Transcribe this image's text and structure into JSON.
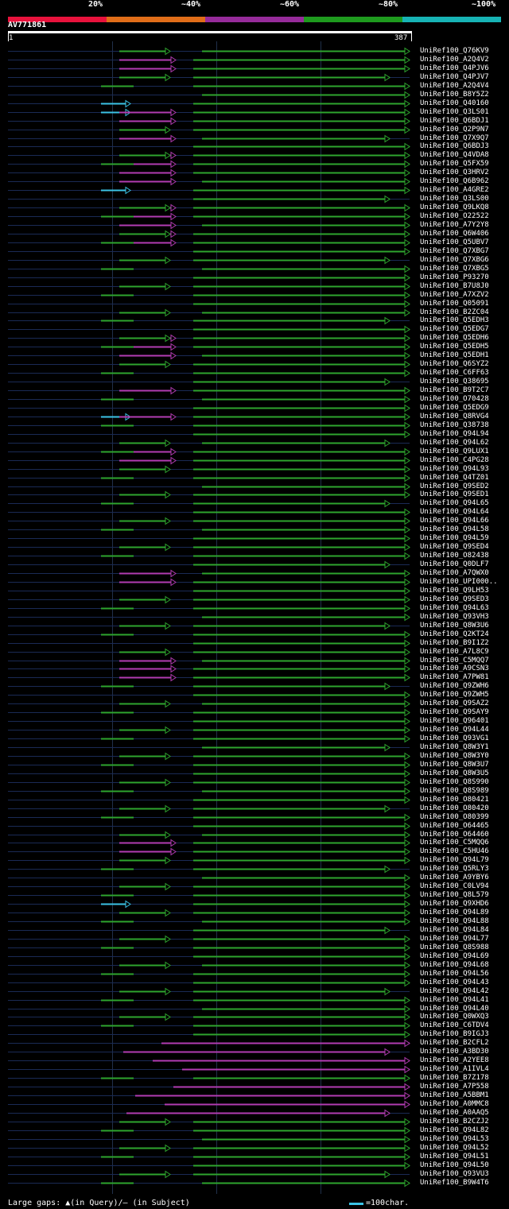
{
  "colors": {
    "bg": "#000000",
    "band_20": "#e8123c",
    "band_40": "#e06d19",
    "band_60": "#962b9a",
    "band_80": "#1e9a1e",
    "band_100": "#17b3b5",
    "green": "#2ea52e",
    "magenta": "#b23cb2",
    "cyan": "#3bc3e6",
    "faint": "#1a2a55"
  },
  "legend": {
    "labels": [
      "20%",
      "~40%",
      "~60%",
      "~80%",
      "~100%"
    ]
  },
  "query": {
    "name": "AV771861",
    "start": "1",
    "end": "387"
  },
  "hits": [
    {
      "label": "UniRef100_Q76KV9",
      "kind": "g"
    },
    {
      "label": "UniRef100_A2Q4V2",
      "kind": "m"
    },
    {
      "label": "UniRef100_Q4PJV6",
      "kind": "gm"
    },
    {
      "label": "UniRef100_Q4PJV7",
      "kind": "g"
    },
    {
      "label": "UniRef100_A2Q4V4",
      "kind": "g"
    },
    {
      "label": "UniRef100_B8Y5Z2",
      "kind": "g"
    },
    {
      "label": "UniRef100_Q40160",
      "kind": "c"
    },
    {
      "label": "UniRef100_Q3LS01",
      "kind": "cm"
    },
    {
      "label": "UniRef100_Q6BDJ1",
      "kind": "m"
    },
    {
      "label": "UniRef100_Q2P9N7",
      "kind": "g"
    },
    {
      "label": "UniRef100_Q7X9Q7",
      "kind": "m"
    },
    {
      "label": "UniRef100_Q6BDJ3",
      "kind": "g"
    },
    {
      "label": "UniRef100_Q4VDA8",
      "kind": "gm"
    },
    {
      "label": "UniRef100_Q5FX59",
      "kind": "gm"
    },
    {
      "label": "UniRef100_Q3HRV2",
      "kind": "gm"
    },
    {
      "label": "UniRef100_Q6B962",
      "kind": "m"
    },
    {
      "label": "UniRef100_A4GRE2",
      "kind": "c"
    },
    {
      "label": "UniRef100_Q3LS00",
      "kind": "g"
    },
    {
      "label": "UniRef100_Q9LKQ8",
      "kind": "gm"
    },
    {
      "label": "UniRef100_O22522",
      "kind": "gm"
    },
    {
      "label": "UniRef100_A7Y2Y8",
      "kind": "gm"
    },
    {
      "label": "UniRef100_Q6W406",
      "kind": "gm"
    },
    {
      "label": "UniRef100_Q5UBV7",
      "kind": "gm"
    },
    {
      "label": "UniRef100_Q7XBG7",
      "kind": "g"
    },
    {
      "label": "UniRef100_Q7XBG6",
      "kind": "g"
    },
    {
      "label": "UniRef100_Q7XBG5",
      "kind": "g"
    },
    {
      "label": "UniRef100_P93270",
      "kind": "g"
    },
    {
      "label": "UniRef100_B7U8J0",
      "kind": "g"
    },
    {
      "label": "UniRef100_A7XZV2",
      "kind": "g"
    },
    {
      "label": "UniRef100_Q05091",
      "kind": "g"
    },
    {
      "label": "UniRef100_B2ZC04",
      "kind": "g"
    },
    {
      "label": "UniRef100_Q5EDH3",
      "kind": "g"
    },
    {
      "label": "UniRef100_Q5EDG7",
      "kind": "g"
    },
    {
      "label": "UniRef100_Q5EDH6",
      "kind": "gm"
    },
    {
      "label": "UniRef100_Q5EDH5",
      "kind": "gm"
    },
    {
      "label": "UniRef100_Q5EDH1",
      "kind": "gm"
    },
    {
      "label": "UniRef100_Q6SYZ2",
      "kind": "g"
    },
    {
      "label": "UniRef100_C6FF63",
      "kind": "g"
    },
    {
      "label": "UniRef100_Q38695",
      "kind": "g"
    },
    {
      "label": "UniRef100_B9T2C7",
      "kind": "m"
    },
    {
      "label": "UniRef100_O70428",
      "kind": "g"
    },
    {
      "label": "UniRef100_Q5EDG9",
      "kind": "g"
    },
    {
      "label": "UniRef100_Q8RVG4",
      "kind": "cm"
    },
    {
      "label": "UniRef100_Q38738",
      "kind": "g"
    },
    {
      "label": "UniRef100_Q94L94",
      "kind": "g"
    },
    {
      "label": "UniRef100_Q94L62",
      "kind": "g"
    },
    {
      "label": "UniRef100_Q9LUX1",
      "kind": "gm"
    },
    {
      "label": "UniRef100_C4PG28",
      "kind": "m"
    },
    {
      "label": "UniRef100_Q94L93",
      "kind": "g"
    },
    {
      "label": "UniRef100_Q4TZ01",
      "kind": "g"
    },
    {
      "label": "UniRef100_Q9SED2",
      "kind": "g"
    },
    {
      "label": "UniRef100_Q9SED1",
      "kind": "g"
    },
    {
      "label": "UniRef100_Q94L65",
      "kind": "g"
    },
    {
      "label": "UniRef100_Q94L64",
      "kind": "g"
    },
    {
      "label": "UniRef100_Q94L66",
      "kind": "g"
    },
    {
      "label": "UniRef100_Q94L58",
      "kind": "g"
    },
    {
      "label": "UniRef100_Q94L59",
      "kind": "g"
    },
    {
      "label": "UniRef100_Q9SED4",
      "kind": "g"
    },
    {
      "label": "UniRef100_O82438",
      "kind": "g"
    },
    {
      "label": "UniRef100_Q0DLF7",
      "kind": "g"
    },
    {
      "label": "UniRef100_A7QWX0",
      "kind": "m"
    },
    {
      "label": "UniRef100_UPI000..",
      "kind": "m"
    },
    {
      "label": "UniRef100_Q9LH53",
      "kind": "g"
    },
    {
      "label": "UniRef100_Q9SED3",
      "kind": "g"
    },
    {
      "label": "UniRef100_Q94L63",
      "kind": "g"
    },
    {
      "label": "UniRef100_Q93VH3",
      "kind": "g"
    },
    {
      "label": "UniRef100_Q8W3U6",
      "kind": "g"
    },
    {
      "label": "UniRef100_Q2KT24",
      "kind": "g"
    },
    {
      "label": "UniRef100_B9I1Z2",
      "kind": "g"
    },
    {
      "label": "UniRef100_A7L8C9",
      "kind": "g"
    },
    {
      "label": "UniRef100_C5MQQ7",
      "kind": "m"
    },
    {
      "label": "UniRef100_A9CSN3",
      "kind": "m"
    },
    {
      "label": "UniRef100_A7PW81",
      "kind": "m"
    },
    {
      "label": "UniRef100_Q9ZWH6",
      "kind": "g"
    },
    {
      "label": "UniRef100_Q9ZWH5",
      "kind": "g"
    },
    {
      "label": "UniRef100_Q9SAZ2",
      "kind": "g"
    },
    {
      "label": "UniRef100_Q9SAY9",
      "kind": "g"
    },
    {
      "label": "UniRef100_Q96401",
      "kind": "g"
    },
    {
      "label": "UniRef100_Q94L44",
      "kind": "g"
    },
    {
      "label": "UniRef100_Q93VG1",
      "kind": "g"
    },
    {
      "label": "UniRef100_Q8W3Y1",
      "kind": "g"
    },
    {
      "label": "UniRef100_Q8W3Y0",
      "kind": "g"
    },
    {
      "label": "UniRef100_Q8W3U7",
      "kind": "g"
    },
    {
      "label": "UniRef100_Q8W3U5",
      "kind": "g"
    },
    {
      "label": "UniRef100_Q8S990",
      "kind": "g"
    },
    {
      "label": "UniRef100_Q8S989",
      "kind": "g"
    },
    {
      "label": "UniRef100_O80421",
      "kind": "g"
    },
    {
      "label": "UniRef100_O80420",
      "kind": "g"
    },
    {
      "label": "UniRef100_O80399",
      "kind": "g"
    },
    {
      "label": "UniRef100_O64465",
      "kind": "g"
    },
    {
      "label": "UniRef100_O64460",
      "kind": "g"
    },
    {
      "label": "UniRef100_C5MQQ6",
      "kind": "m"
    },
    {
      "label": "UniRef100_C5HU46",
      "kind": "m"
    },
    {
      "label": "UniRef100_Q94L79",
      "kind": "g"
    },
    {
      "label": "UniRef100_Q5RLY3",
      "kind": "g"
    },
    {
      "label": "UniRef100_A9YBY6",
      "kind": "g"
    },
    {
      "label": "UniRef100_C0LV94",
      "kind": "g"
    },
    {
      "label": "UniRef100_Q8L579",
      "kind": "g"
    },
    {
      "label": "UniRef100_Q9XHD6",
      "kind": "c"
    },
    {
      "label": "UniRef100_Q94L89",
      "kind": "g"
    },
    {
      "label": "UniRef100_Q94L88",
      "kind": "g"
    },
    {
      "label": "UniRef100_Q94L84",
      "kind": "g"
    },
    {
      "label": "UniRef100_Q94L77",
      "kind": "g"
    },
    {
      "label": "UniRef100_Q8S988",
      "kind": "g"
    },
    {
      "label": "UniRef100_Q94L69",
      "kind": "g"
    },
    {
      "label": "UniRef100_Q94L68",
      "kind": "g"
    },
    {
      "label": "UniRef100_Q94L56",
      "kind": "g"
    },
    {
      "label": "UniRef100_Q94L43",
      "kind": "g"
    },
    {
      "label": "UniRef100_Q94L42",
      "kind": "g"
    },
    {
      "label": "UniRef100_Q94L41",
      "kind": "g"
    },
    {
      "label": "UniRef100_Q94L40",
      "kind": "g"
    },
    {
      "label": "UniRef100_Q0WXQ3",
      "kind": "g"
    },
    {
      "label": "UniRef100_C6TDV4",
      "kind": "g"
    },
    {
      "label": "UniRef100_B9IGJ3",
      "kind": "g"
    },
    {
      "label": "UniRef100_B2CFL2",
      "kind": "M"
    },
    {
      "label": "UniRef100_A3BD30",
      "kind": "M"
    },
    {
      "label": "UniRef100_A2YEE8",
      "kind": "M"
    },
    {
      "label": "UniRef100_A1IVL4",
      "kind": "M"
    },
    {
      "label": "UniRef100_B7Z178",
      "kind": "g"
    },
    {
      "label": "UniRef100_A7P558",
      "kind": "M"
    },
    {
      "label": "UniRef100_A5BBM1",
      "kind": "M"
    },
    {
      "label": "UniRef100_A0MMC8",
      "kind": "M"
    },
    {
      "label": "UniRef100_A0AAQ5",
      "kind": "M"
    },
    {
      "label": "UniRef100_B2CZJ2",
      "kind": "g"
    },
    {
      "label": "UniRef100_Q94L82",
      "kind": "g"
    },
    {
      "label": "UniRef100_Q94L53",
      "kind": "g"
    },
    {
      "label": "UniRef100_Q94L52",
      "kind": "g"
    },
    {
      "label": "UniRef100_Q94L51",
      "kind": "g"
    },
    {
      "label": "UniRef100_Q94L50",
      "kind": "g"
    },
    {
      "label": "UniRef100_Q93VU3",
      "kind": "g"
    },
    {
      "label": "UniRef100_B9W4T6",
      "kind": "g"
    }
  ],
  "footer": {
    "large_gaps": "Large gaps: ▲(in Query)/— (in Subject)",
    "scale": "=100char."
  }
}
